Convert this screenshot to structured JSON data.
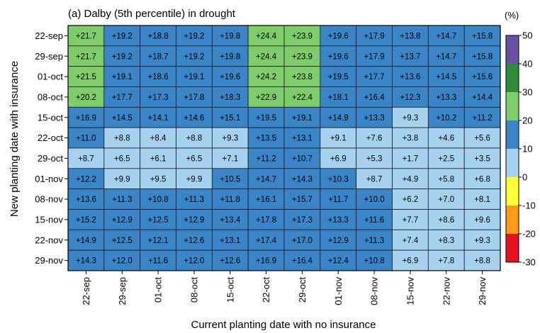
{
  "chart_data": {
    "type": "heatmap",
    "title": "(a) Dalby (5th percentile) in drought",
    "xlabel": "Current planting date with no insurance",
    "ylabel": "New planting date with insurance",
    "x_categories": [
      "22-sep",
      "29-sep",
      "01-oct",
      "08-oct",
      "15-oct",
      "22-oct",
      "29-oct",
      "01-nov",
      "08-nov",
      "15-nov",
      "22-nov",
      "29-nov"
    ],
    "y_categories": [
      "22-sep",
      "29-sep",
      "01-oct",
      "08-oct",
      "15-oct",
      "22-oct",
      "29-oct",
      "01-nov",
      "08-nov",
      "15-nov",
      "22-nov",
      "29-nov"
    ],
    "values": [
      [
        21.7,
        19.2,
        18.8,
        19.2,
        19.8,
        24.4,
        23.9,
        19.6,
        17.9,
        13.8,
        14.7,
        15.8
      ],
      [
        21.7,
        19.2,
        18.7,
        19.2,
        19.8,
        24.4,
        23.9,
        19.6,
        17.9,
        13.7,
        14.7,
        15.8
      ],
      [
        21.5,
        19.1,
        18.6,
        19.1,
        19.6,
        24.2,
        23.8,
        19.5,
        17.7,
        13.6,
        14.5,
        15.6
      ],
      [
        20.2,
        17.7,
        17.3,
        17.8,
        18.3,
        22.9,
        22.4,
        18.1,
        16.4,
        12.3,
        13.3,
        14.4
      ],
      [
        16.9,
        14.5,
        14.1,
        14.6,
        15.1,
        19.5,
        19.1,
        14.9,
        13.3,
        9.3,
        10.2,
        11.2
      ],
      [
        11.0,
        8.8,
        8.4,
        8.8,
        9.3,
        13.5,
        13.1,
        9.1,
        7.6,
        3.8,
        4.6,
        5.6
      ],
      [
        8.7,
        6.5,
        6.1,
        6.5,
        7.1,
        11.2,
        10.7,
        6.9,
        5.3,
        1.7,
        2.5,
        3.5
      ],
      [
        12.2,
        9.9,
        9.5,
        9.9,
        10.5,
        14.7,
        14.3,
        10.3,
        8.7,
        4.9,
        5.8,
        6.8
      ],
      [
        13.6,
        11.3,
        10.8,
        11.3,
        11.8,
        16.1,
        15.7,
        11.7,
        10.0,
        6.2,
        7.0,
        8.1
      ],
      [
        15.2,
        12.9,
        12.5,
        12.9,
        13.4,
        17.8,
        17.3,
        13.3,
        11.6,
        7.7,
        8.6,
        9.6
      ],
      [
        14.9,
        12.5,
        12.1,
        12.6,
        13.1,
        17.4,
        17.0,
        12.9,
        11.3,
        7.4,
        8.3,
        9.3
      ],
      [
        14.3,
        12.0,
        11.6,
        12.0,
        12.6,
        16.9,
        16.4,
        12.4,
        10.8,
        6.9,
        7.8,
        8.8
      ]
    ],
    "colorbar": {
      "unit_label": "(%)",
      "ticks": [
        50,
        40,
        30,
        20,
        10,
        0,
        -10,
        -20,
        -30
      ],
      "range": [
        -30,
        50
      ],
      "bins": [
        {
          "min": 40,
          "max": 50,
          "color": "#6a51a3"
        },
        {
          "min": 30,
          "max": 40,
          "color": "#2e8b3a"
        },
        {
          "min": 20,
          "max": 30,
          "color": "#7fcc6a"
        },
        {
          "min": 10,
          "max": 20,
          "color": "#3a85c8"
        },
        {
          "min": 0,
          "max": 10,
          "color": "#a6d2f0"
        },
        {
          "min": -10,
          "max": 0,
          "color": "#ffff33"
        },
        {
          "min": -20,
          "max": -10,
          "color": "#ff9a1a"
        },
        {
          "min": -30,
          "max": -20,
          "color": "#e8101a"
        }
      ]
    },
    "value_format": "signed, one decimal"
  }
}
